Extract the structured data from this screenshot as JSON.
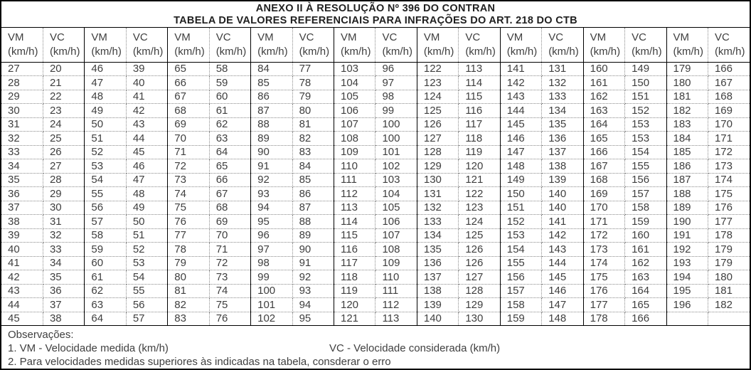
{
  "title": {
    "line1": "ANEXO II À RESOLUÇÃO Nº 396 DO CONTRAN",
    "line2": "TABELA DE VALORES REFERENCIAIS PARA INFRAÇÕES DO ART. 218 DO CTB"
  },
  "table": {
    "pair_count": 9,
    "column_headers": {
      "vm": "VM",
      "vc": "VC",
      "unit": "(km/h)"
    },
    "rows": [
      [
        27,
        20,
        46,
        39,
        65,
        58,
        84,
        77,
        103,
        96,
        122,
        113,
        141,
        131,
        160,
        149,
        179,
        166
      ],
      [
        28,
        21,
        47,
        40,
        66,
        59,
        85,
        78,
        104,
        97,
        123,
        114,
        142,
        132,
        161,
        150,
        180,
        167
      ],
      [
        29,
        22,
        48,
        41,
        67,
        60,
        86,
        79,
        105,
        98,
        124,
        115,
        143,
        133,
        162,
        151,
        181,
        168
      ],
      [
        30,
        23,
        49,
        42,
        68,
        61,
        87,
        80,
        106,
        99,
        125,
        116,
        144,
        134,
        163,
        152,
        182,
        169
      ],
      [
        31,
        24,
        50,
        43,
        69,
        62,
        88,
        81,
        107,
        100,
        126,
        117,
        145,
        135,
        164,
        153,
        183,
        170
      ],
      [
        32,
        25,
        51,
        44,
        70,
        63,
        89,
        82,
        108,
        100,
        127,
        118,
        146,
        136,
        165,
        153,
        184,
        171
      ],
      [
        33,
        26,
        52,
        45,
        71,
        64,
        90,
        83,
        109,
        101,
        128,
        119,
        147,
        137,
        166,
        154,
        185,
        172
      ],
      [
        34,
        27,
        53,
        46,
        72,
        65,
        91,
        84,
        110,
        102,
        129,
        120,
        148,
        138,
        167,
        155,
        186,
        173
      ],
      [
        35,
        28,
        54,
        47,
        73,
        66,
        92,
        85,
        111,
        103,
        130,
        121,
        149,
        139,
        168,
        156,
        187,
        174
      ],
      [
        36,
        29,
        55,
        48,
        74,
        67,
        93,
        86,
        112,
        104,
        131,
        122,
        150,
        140,
        169,
        157,
        188,
        175
      ],
      [
        37,
        30,
        56,
        49,
        75,
        68,
        94,
        87,
        113,
        105,
        132,
        123,
        151,
        140,
        170,
        158,
        189,
        176
      ],
      [
        38,
        31,
        57,
        50,
        76,
        69,
        95,
        88,
        114,
        106,
        133,
        124,
        152,
        141,
        171,
        159,
        190,
        177
      ],
      [
        39,
        32,
        58,
        51,
        77,
        70,
        96,
        89,
        115,
        107,
        134,
        125,
        153,
        142,
        172,
        160,
        191,
        178
      ],
      [
        40,
        33,
        59,
        52,
        78,
        71,
        97,
        90,
        116,
        108,
        135,
        126,
        154,
        143,
        173,
        161,
        192,
        179
      ],
      [
        41,
        34,
        60,
        53,
        79,
        72,
        98,
        91,
        117,
        109,
        136,
        126,
        155,
        144,
        174,
        162,
        193,
        179
      ],
      [
        42,
        35,
        61,
        54,
        80,
        73,
        99,
        92,
        118,
        110,
        137,
        127,
        156,
        145,
        175,
        163,
        194,
        180
      ],
      [
        43,
        36,
        62,
        55,
        81,
        74,
        100,
        93,
        119,
        111,
        138,
        128,
        157,
        146,
        176,
        164,
        195,
        181
      ],
      [
        44,
        37,
        63,
        56,
        82,
        75,
        101,
        94,
        120,
        112,
        139,
        129,
        158,
        147,
        177,
        165,
        196,
        182
      ],
      [
        45,
        38,
        64,
        57,
        83,
        76,
        102,
        95,
        121,
        113,
        140,
        130,
        159,
        148,
        178,
        166,
        "",
        ""
      ]
    ]
  },
  "footer": {
    "heading": "Observações:",
    "note1_vm": "1. VM - Velocidade medida (km/h)",
    "note1_vc": "VC - Velocidade considerada (km/h)",
    "note2": "2. Para velocidades medidas superiores às indicadas na tabela, consderar o erro"
  },
  "colors": {
    "background": "#ffffff",
    "outer_border": "#000000",
    "dotted_grid": "#8a8a8a",
    "text": "#3f3f3f",
    "title_text": "#1f1f1f"
  }
}
